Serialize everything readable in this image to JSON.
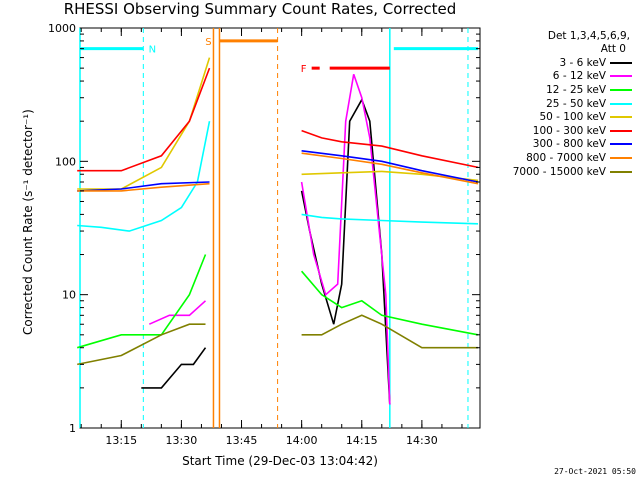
{
  "title": "RHESSI Observing Summary Count Rates, Corrected",
  "footer_date": "27-Oct-2021 05:50",
  "chart_data": {
    "type": "line",
    "title": "RHESSI Observing Summary Count Rates, Corrected",
    "xlabel": "Start Time (29-Dec-03 13:04:42)",
    "ylabel": "Corrected Count Rate (s⁻¹ detector⁻¹)",
    "y_scale": "log",
    "ylim": [
      1,
      1000
    ],
    "xlim": [
      "13:04:42",
      "14:44:30"
    ],
    "x_ticks": [
      "13:15",
      "13:30",
      "13:45",
      "14:00",
      "14:15",
      "14:30"
    ],
    "y_ticks": [
      "1",
      "10",
      "100",
      "1000"
    ],
    "grid": false,
    "legend_position": "right",
    "legend_header": [
      "Det 1,3,4,5,6,9,",
      "Att 0"
    ],
    "series": [
      {
        "name": "3 - 6 keV",
        "color": "#000000",
        "points": [
          [
            "13:20",
            2
          ],
          [
            "13:25",
            2
          ],
          [
            "13:30",
            3
          ],
          [
            "13:33",
            3
          ],
          [
            "13:36",
            4
          ],
          [
            "14:00",
            60
          ],
          [
            "14:02",
            30
          ],
          [
            "14:05",
            12
          ],
          [
            "14:08",
            6
          ],
          [
            "14:10",
            12
          ],
          [
            "14:12",
            200
          ],
          [
            "14:15",
            290
          ],
          [
            "14:17",
            200
          ],
          [
            "14:20",
            20
          ],
          [
            "14:22",
            1.5
          ]
        ]
      },
      {
        "name": "6 - 12 keV",
        "color": "#ff00ff",
        "points": [
          [
            "13:22",
            6
          ],
          [
            "13:27",
            7
          ],
          [
            "13:32",
            7
          ],
          [
            "13:36",
            9
          ],
          [
            "14:00",
            70
          ],
          [
            "14:03",
            20
          ],
          [
            "14:06",
            10
          ],
          [
            "14:09",
            12
          ],
          [
            "14:11",
            200
          ],
          [
            "14:13",
            450
          ],
          [
            "14:15",
            300
          ],
          [
            "14:17",
            150
          ],
          [
            "14:21",
            10
          ],
          [
            "14:22",
            1.5
          ]
        ]
      },
      {
        "name": "12 - 25 keV",
        "color": "#00ff00",
        "points": [
          [
            "13:04",
            4
          ],
          [
            "13:15",
            5
          ],
          [
            "13:25",
            5
          ],
          [
            "13:32",
            10
          ],
          [
            "13:36",
            20
          ],
          [
            "14:00",
            15
          ],
          [
            "14:05",
            10
          ],
          [
            "14:10",
            8
          ],
          [
            "14:15",
            9
          ],
          [
            "14:20",
            7
          ],
          [
            "14:30",
            6
          ],
          [
            "14:44",
            5
          ]
        ]
      },
      {
        "name": "25 - 50 keV",
        "color": "#00ffff",
        "points": [
          [
            "13:04",
            33
          ],
          [
            "13:10",
            32
          ],
          [
            "13:17",
            30
          ],
          [
            "13:25",
            36
          ],
          [
            "13:30",
            45
          ],
          [
            "13:34",
            70
          ],
          [
            "13:37",
            200
          ],
          [
            "14:00",
            40
          ],
          [
            "14:05",
            38
          ],
          [
            "14:10",
            37
          ],
          [
            "14:20",
            36
          ],
          [
            "14:30",
            35
          ],
          [
            "14:44",
            34
          ]
        ]
      },
      {
        "name": "50 - 100 keV",
        "color": "#e0c800",
        "points": [
          [
            "13:04",
            62
          ],
          [
            "13:15",
            62
          ],
          [
            "13:25",
            90
          ],
          [
            "13:32",
            200
          ],
          [
            "13:37",
            600
          ],
          [
            "14:00",
            80
          ],
          [
            "14:10",
            82
          ],
          [
            "14:20",
            84
          ],
          [
            "14:30",
            80
          ],
          [
            "14:44",
            72
          ]
        ]
      },
      {
        "name": "100 - 300 keV",
        "color": "#ff0000",
        "points": [
          [
            "13:04",
            85
          ],
          [
            "13:15",
            85
          ],
          [
            "13:25",
            110
          ],
          [
            "13:32",
            200
          ],
          [
            "13:37",
            500
          ],
          [
            "14:00",
            170
          ],
          [
            "14:05",
            150
          ],
          [
            "14:10",
            140
          ],
          [
            "14:20",
            130
          ],
          [
            "14:30",
            110
          ],
          [
            "14:44",
            90
          ]
        ]
      },
      {
        "name": "300 - 800 keV",
        "color": "#0000ff",
        "points": [
          [
            "13:04",
            60
          ],
          [
            "13:15",
            62
          ],
          [
            "13:25",
            68
          ],
          [
            "13:37",
            70
          ],
          [
            "14:00",
            120
          ],
          [
            "14:10",
            110
          ],
          [
            "14:20",
            100
          ],
          [
            "14:30",
            85
          ],
          [
            "14:44",
            70
          ]
        ]
      },
      {
        "name": "800 - 7000 keV",
        "color": "#ff8000",
        "points": [
          [
            "13:04",
            60
          ],
          [
            "13:15",
            60
          ],
          [
            "13:25",
            64
          ],
          [
            "13:37",
            68
          ],
          [
            "14:00",
            115
          ],
          [
            "14:10",
            105
          ],
          [
            "14:20",
            95
          ],
          [
            "14:30",
            82
          ],
          [
            "14:44",
            68
          ]
        ]
      },
      {
        "name": "7000 - 15000 keV",
        "color": "#808000",
        "points": [
          [
            "13:04",
            3
          ],
          [
            "13:15",
            3.5
          ],
          [
            "13:25",
            5
          ],
          [
            "13:32",
            6
          ],
          [
            "13:36",
            6
          ],
          [
            "14:00",
            5
          ],
          [
            "14:05",
            5
          ],
          [
            "14:10",
            6
          ],
          [
            "14:15",
            7
          ],
          [
            "14:20",
            6
          ],
          [
            "14:30",
            4
          ],
          [
            "14:44",
            4
          ]
        ]
      }
    ],
    "markers": [
      {
        "label": "N",
        "color": "#00ffff",
        "kind": "night",
        "bars": [
          [
            "13:04:42",
            "13:20:30"
          ],
          [
            "14:23:00",
            "14:44:00"
          ]
        ],
        "dashed_lines": [
          "13:20:30",
          "14:41:30"
        ],
        "solid_lines": [
          "13:04:42",
          "14:22:00"
        ],
        "bar_level": 700
      },
      {
        "label": "S",
        "color": "#ff8000",
        "kind": "saa",
        "bars": [
          [
            "13:39:30",
            "13:54:00"
          ]
        ],
        "dashed_lines": [
          "13:54:00"
        ],
        "solid_lines": [
          "13:38:00",
          "13:39:30"
        ],
        "bar_level": 800
      },
      {
        "label": "F",
        "color": "#ff0000",
        "kind": "flare",
        "bars": [
          [
            "14:02:30",
            "14:04:30"
          ],
          [
            "14:07:00",
            "14:22:00"
          ]
        ],
        "bar_level": 500
      }
    ]
  },
  "legend": {
    "header_line1": "Det 1,3,4,5,6,9,",
    "header_line2": "Att 0",
    "items": [
      {
        "label": "3 - 6 keV",
        "color": "#000000"
      },
      {
        "label": "6 - 12 keV",
        "color": "#ff00ff"
      },
      {
        "label": "12 - 25 keV",
        "color": "#00ff00"
      },
      {
        "label": "25 - 50 keV",
        "color": "#00ffff"
      },
      {
        "label": "50 - 100 keV",
        "color": "#e0c800"
      },
      {
        "label": "100 - 300 keV",
        "color": "#ff0000"
      },
      {
        "label": "300 - 800 keV",
        "color": "#0000ff"
      },
      {
        "label": "800 - 7000 keV",
        "color": "#ff8000"
      },
      {
        "label": "7000 - 15000 keV",
        "color": "#808000"
      }
    ]
  }
}
